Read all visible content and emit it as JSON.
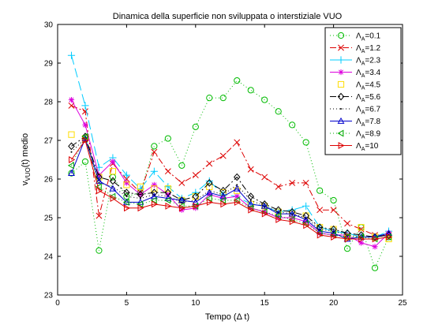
{
  "chart_data": {
    "type": "line",
    "title": "Dinamica della superficie non sviluppata o interstiziale VUO",
    "xlabel": "Tempo (Δ t)",
    "ylabel": {
      "main": "v",
      "sub": "VUO",
      "rest": "(t) medio"
    },
    "xlim": [
      0,
      25
    ],
    "ylim": [
      23,
      30
    ],
    "xticks": [
      "0",
      "5",
      "10",
      "15",
      "20",
      "25"
    ],
    "yticks": [
      "23",
      "24",
      "25",
      "26",
      "27",
      "28",
      "29",
      "30"
    ],
    "grid": false,
    "legend_position": "top-right",
    "x": [
      1,
      2,
      3,
      4,
      5,
      6,
      7,
      8,
      9,
      10,
      11,
      12,
      13,
      14,
      15,
      16,
      17,
      18,
      19,
      20,
      21,
      22,
      23,
      24
    ],
    "series": [
      {
        "label_main": "Λ",
        "label_sub": "A",
        "label_value": "=0.1",
        "color": "#00bb00",
        "dash": "dotted",
        "marker": "circle",
        "values": [
          26.15,
          26.45,
          24.15,
          26.05,
          25.55,
          25.65,
          26.85,
          27.05,
          26.35,
          27.35,
          28.1,
          28.1,
          28.55,
          28.3,
          28.05,
          27.75,
          27.4,
          26.95,
          25.7,
          25.45,
          24.2,
          24.75,
          23.7,
          24.5
        ]
      },
      {
        "label_main": "Λ",
        "label_sub": "A",
        "label_value": "=1.2",
        "color": "#dd0000",
        "dash": "dashdot",
        "marker": "x",
        "values": [
          27.9,
          27.75,
          25.05,
          26.4,
          26.0,
          25.65,
          26.7,
          26.2,
          25.9,
          26.1,
          26.4,
          26.6,
          26.95,
          26.25,
          26.05,
          25.8,
          25.9,
          25.9,
          25.2,
          25.2,
          24.85,
          24.7,
          24.55,
          24.55
        ]
      },
      {
        "label_main": "Λ",
        "label_sub": "A",
        "label_value": "=2.3",
        "color": "#00ccff",
        "dash": "longdash",
        "marker": "plus",
        "values": [
          29.2,
          27.9,
          26.3,
          26.55,
          26.1,
          25.75,
          26.2,
          25.8,
          25.5,
          25.65,
          25.95,
          25.6,
          25.55,
          25.35,
          25.3,
          25.15,
          25.2,
          25.3,
          24.75,
          24.65,
          24.6,
          24.5,
          24.5,
          24.65
        ]
      },
      {
        "label_main": "Λ",
        "label_sub": "A",
        "label_value": "=3.4",
        "color": "#dd00dd",
        "dash": "solid",
        "marker": "star",
        "values": [
          28.05,
          27.4,
          26.1,
          26.45,
          25.9,
          25.6,
          25.85,
          25.6,
          25.2,
          25.25,
          25.6,
          25.5,
          25.55,
          25.25,
          25.15,
          25.0,
          25.0,
          24.9,
          24.6,
          24.55,
          24.55,
          24.35,
          24.25,
          24.6
        ]
      },
      {
        "label_main": "Λ",
        "label_sub": "A",
        "label_value": "=4.5",
        "color": "#ffdd00",
        "dash": "none",
        "marker": "square",
        "values": [
          27.15,
          27.05,
          26.05,
          26.2,
          25.85,
          25.8,
          25.75,
          25.75,
          25.45,
          25.55,
          25.8,
          25.65,
          25.7,
          25.35,
          25.3,
          25.15,
          25.1,
          25.05,
          24.75,
          24.7,
          24.5,
          24.75,
          24.5,
          24.45
        ]
      },
      {
        "label_main": "Λ",
        "label_sub": "A",
        "label_value": "=5.6",
        "color": "#000000",
        "dash": "dashdot",
        "marker": "diamond",
        "values": [
          26.85,
          27.1,
          26.05,
          25.95,
          25.65,
          25.6,
          25.65,
          25.65,
          25.45,
          25.55,
          25.9,
          25.7,
          26.05,
          25.55,
          25.35,
          25.2,
          25.15,
          25.05,
          24.75,
          24.7,
          24.6,
          24.55,
          24.5,
          24.55
        ]
      },
      {
        "label_main": "Λ",
        "label_sub": "A",
        "label_value": "=6.7",
        "color": "#000000",
        "dash": "dotted",
        "marker": "point",
        "values": [
          26.7,
          27.05,
          25.9,
          25.8,
          25.55,
          25.5,
          25.6,
          25.55,
          25.4,
          25.45,
          25.7,
          25.6,
          25.85,
          25.45,
          25.3,
          25.15,
          25.1,
          25.0,
          24.7,
          24.65,
          24.55,
          24.5,
          24.5,
          24.55
        ]
      },
      {
        "label_main": "Λ",
        "label_sub": "A",
        "label_value": "=7.8",
        "color": "#0000cc",
        "dash": "solid",
        "marker": "triangle-up",
        "values": [
          26.15,
          27.05,
          25.95,
          25.75,
          25.4,
          25.4,
          25.55,
          25.5,
          25.45,
          25.4,
          25.65,
          25.55,
          25.75,
          25.35,
          25.3,
          25.1,
          25.1,
          24.95,
          24.65,
          24.6,
          24.45,
          24.5,
          24.5,
          24.6
        ]
      },
      {
        "label_main": "Λ",
        "label_sub": "A",
        "label_value": "=8.9",
        "color": "#00aa00",
        "dash": "dotted",
        "marker": "triangle-left",
        "values": [
          26.35,
          27.1,
          25.8,
          25.55,
          25.4,
          25.35,
          25.45,
          25.45,
          25.3,
          25.3,
          25.5,
          25.45,
          25.45,
          25.25,
          25.15,
          25.05,
          24.95,
          24.85,
          24.6,
          24.55,
          24.5,
          24.5,
          24.45,
          24.5
        ]
      },
      {
        "label_main": "Λ",
        "label_sub": "A",
        "label_value": "=10",
        "color": "#dd0000",
        "dash": "solid",
        "marker": "triangle-right",
        "values": [
          26.5,
          27.0,
          25.7,
          25.5,
          25.25,
          25.25,
          25.35,
          25.3,
          25.25,
          25.3,
          25.4,
          25.35,
          25.4,
          25.2,
          25.1,
          24.95,
          24.9,
          24.8,
          24.55,
          24.5,
          24.45,
          24.45,
          24.45,
          24.5
        ]
      }
    ]
  }
}
